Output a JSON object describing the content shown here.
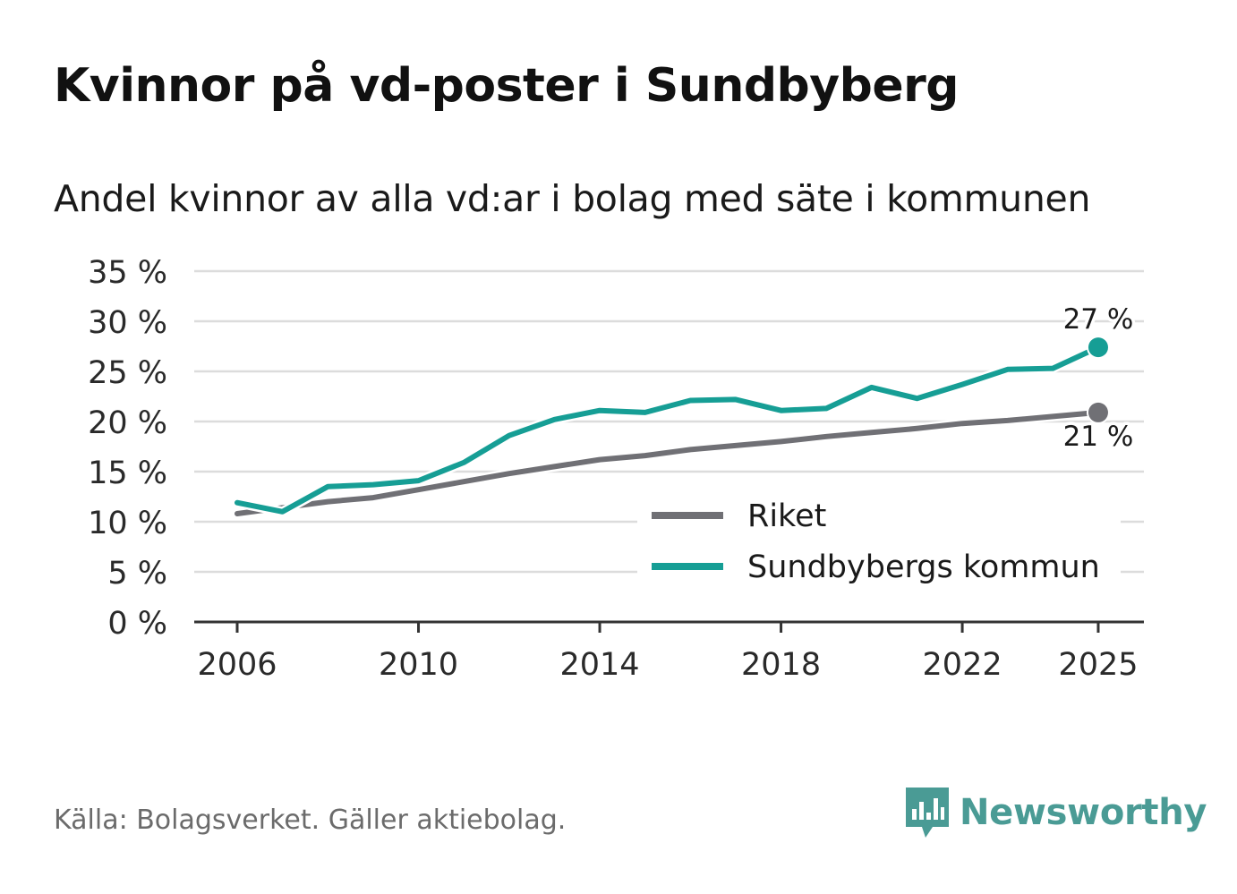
{
  "title": "Kvinnor på vd-poster i Sundbyberg",
  "subtitle": "Andel kvinnor av alla vd:ar i bolag med säte i kommunen",
  "source": "Källa: Bolagsverket. Gäller aktiebolag.",
  "brand": {
    "name": "Newsworthy",
    "icon": "newsworthy-logo-icon",
    "color": "#4a9b95"
  },
  "chart_data": {
    "type": "line",
    "title": "Kvinnor på vd-poster i Sundbyberg",
    "subtitle": "Andel kvinnor av alla vd:ar i bolag med säte i kommunen",
    "xlabel": "",
    "ylabel": "",
    "x": [
      2006,
      2007,
      2008,
      2009,
      2010,
      2011,
      2012,
      2013,
      2014,
      2015,
      2016,
      2017,
      2018,
      2019,
      2020,
      2021,
      2022,
      2023,
      2024,
      2025
    ],
    "x_ticks": [
      "2006",
      "2010",
      "2014",
      "2018",
      "2022",
      "2025"
    ],
    "y_ticks": [
      "0 %",
      "5 %",
      "10 %",
      "15 %",
      "20 %",
      "25 %",
      "30 %",
      "35 %"
    ],
    "ylim": [
      0,
      35
    ],
    "grid": true,
    "legend_position": "bottom-right",
    "series": [
      {
        "name": "Riket",
        "color": "#707075",
        "values": [
          10.8,
          11.4,
          12.0,
          12.4,
          13.2,
          14.0,
          14.8,
          15.5,
          16.2,
          16.6,
          17.2,
          17.6,
          18.0,
          18.5,
          18.9,
          19.3,
          19.8,
          20.1,
          20.5,
          20.9
        ],
        "end_label": "21 %"
      },
      {
        "name": "Sundbybergs kommun",
        "color": "#169e95",
        "values": [
          11.9,
          11.0,
          13.5,
          13.7,
          14.1,
          15.9,
          18.6,
          20.2,
          21.1,
          20.9,
          22.1,
          22.2,
          21.1,
          21.3,
          23.4,
          22.3,
          23.7,
          25.2,
          25.3,
          27.4
        ],
        "end_label": "27 %"
      }
    ]
  }
}
